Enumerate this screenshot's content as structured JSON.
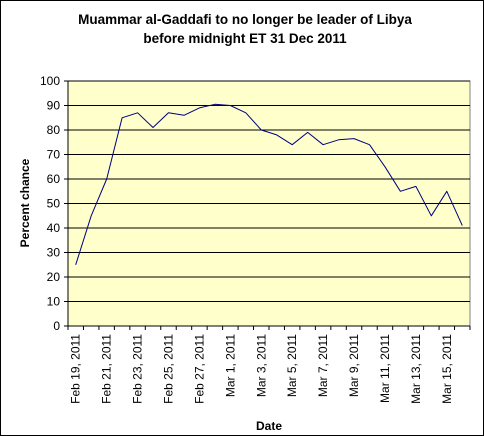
{
  "chart_data": {
    "type": "line",
    "title_lines": [
      "Muammar al-Gaddafi to no longer be leader of Libya",
      "before midnight ET 31 Dec 2011"
    ],
    "xlabel": "Date",
    "ylabel": "Percent chance",
    "ylim": [
      0,
      100
    ],
    "yticks": [
      0,
      10,
      20,
      30,
      40,
      50,
      60,
      70,
      80,
      90,
      100
    ],
    "xtick_labels": [
      "Feb 19, 2011",
      "Feb 21, 2011",
      "Feb 23, 2011",
      "Feb 25, 2011",
      "Feb 27, 2011",
      "Mar 1, 2011",
      "Mar 3, 2011",
      "Mar 5, 2011",
      "Mar 7, 2011",
      "Mar 9, 2011",
      "Mar 11, 2011",
      "Mar 13, 2011",
      "Mar 15, 2011"
    ],
    "grid": true,
    "series": [
      {
        "x": [
          "Feb 19, 2011",
          "Feb 20, 2011",
          "Feb 21, 2011",
          "Feb 22, 2011",
          "Feb 23, 2011",
          "Feb 24, 2011",
          "Feb 25, 2011",
          "Feb 26, 2011",
          "Feb 27, 2011",
          "Feb 28, 2011",
          "Mar 1, 2011",
          "Mar 2, 2011",
          "Mar 3, 2011",
          "Mar 4, 2011",
          "Mar 5, 2011",
          "Mar 6, 2011",
          "Mar 7, 2011",
          "Mar 8, 2011",
          "Mar 9, 2011",
          "Mar 10, 2011",
          "Mar 11, 2011",
          "Mar 12, 2011",
          "Mar 13, 2011",
          "Mar 14, 2011",
          "Mar 15, 2011",
          "Mar 16, 2011"
        ],
        "values": [
          25,
          45,
          60,
          85,
          87,
          81,
          87,
          86,
          89,
          90.5,
          90,
          87,
          80,
          78,
          74,
          79,
          74,
          76,
          76.5,
          74,
          65,
          55,
          57,
          45,
          55,
          41
        ],
        "color": "#000080"
      }
    ],
    "colors": {
      "plot_background": "#ffffcc",
      "gridline": "#000000",
      "series": "#000080"
    }
  }
}
